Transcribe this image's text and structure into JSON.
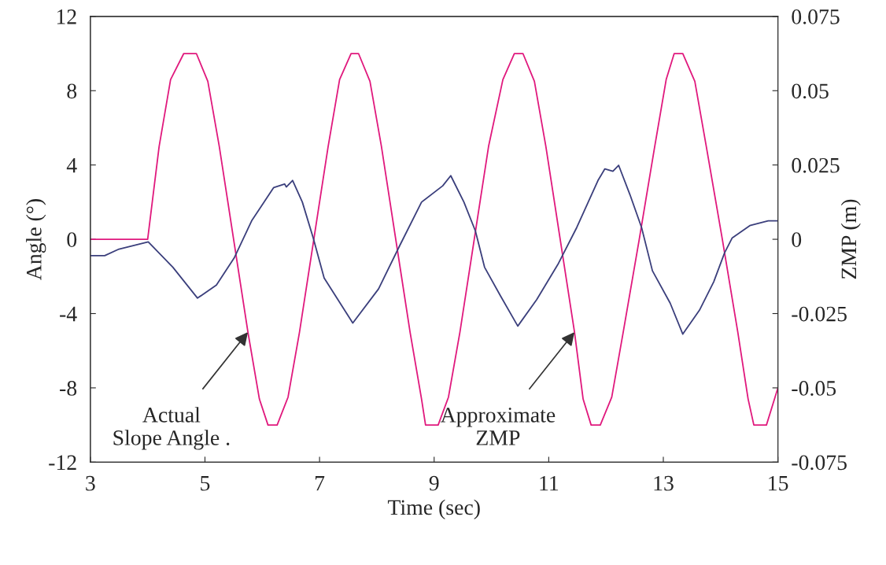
{
  "chart_data": {
    "type": "line",
    "xlabel": "Time (sec)",
    "ylabel": "Angle (°)",
    "y2label": "ZMP (m)",
    "xlim": [
      3,
      15
    ],
    "xticks": [
      3,
      5,
      7,
      9,
      11,
      13,
      15
    ],
    "ylim": [
      -12,
      12
    ],
    "yticks": [
      -12,
      -8,
      -4,
      0,
      4,
      8,
      12
    ],
    "y2lim": [
      -0.075,
      0.075
    ],
    "y2ticks": [
      -0.075,
      -0.05,
      -0.025,
      0,
      0.025,
      0.05,
      0.075
    ],
    "grid": false,
    "legend": false,
    "marker": "none",
    "line_style": "solid",
    "series": [
      {
        "color": "#e0197d",
        "x": [
          3,
          4.0,
          4.2,
          4.4,
          4.63,
          4.85,
          5.05,
          5.25,
          5.5,
          5.75,
          5.95,
          6.1,
          6.26,
          6.45,
          6.65,
          6.9,
          7.15,
          7.35,
          7.55,
          7.68,
          7.88,
          8.08,
          8.33,
          8.58,
          8.78,
          8.85,
          9.07,
          9.25,
          9.45,
          9.7,
          9.95,
          10.2,
          10.4,
          10.55,
          10.75,
          10.95,
          11.2,
          11.45,
          11.6,
          11.74,
          11.9,
          12.1,
          12.3,
          12.58,
          12.85,
          13.05,
          13.19,
          13.34,
          13.55,
          13.75,
          14.03,
          14.3,
          14.48,
          14.58,
          14.8,
          15
        ],
        "values": [
          0,
          0,
          5,
          8.6,
          10,
          10,
          8.5,
          5,
          0,
          -5,
          -8.6,
          -10,
          -10,
          -8.5,
          -5,
          0,
          5,
          8.6,
          10,
          10,
          8.5,
          5,
          0,
          -5,
          -8.6,
          -10,
          -10,
          -8.5,
          -5,
          0,
          5,
          8.6,
          10,
          10,
          8.5,
          5,
          0,
          -5,
          -8.6,
          -10,
          -10,
          -8.5,
          -5,
          0,
          5,
          8.6,
          10,
          10,
          8.5,
          5,
          0,
          -5,
          -8.6,
          -10,
          -10,
          -8
        ]
      },
      {
        "color": "#3b3f7c",
        "axis": "y2",
        "x": [
          3,
          3.25,
          3.5,
          4.01,
          4.44,
          4.87,
          5.2,
          5.51,
          5.82,
          6.2,
          6.39,
          6.42,
          6.53,
          6.7,
          6.89,
          7.08,
          7.58,
          8.03,
          8.4,
          8.78,
          9.15,
          9.29,
          9.52,
          9.72,
          9.88,
          10.16,
          10.46,
          10.79,
          11.17,
          11.49,
          11.86,
          11.98,
          12.12,
          12.22,
          12.42,
          12.62,
          12.81,
          13.12,
          13.34,
          13.63,
          13.88,
          14.07,
          14.2,
          14.51,
          14.83,
          15
        ],
        "values": [
          -0.0055,
          -0.0055,
          -0.0033,
          -0.0009,
          -0.0094,
          -0.0198,
          -0.0154,
          -0.0063,
          0.0064,
          0.0174,
          0.0186,
          0.0176,
          0.0198,
          0.0125,
          0.0004,
          -0.013,
          -0.0282,
          -0.0167,
          -0.0021,
          0.0125,
          0.018,
          0.0214,
          0.0125,
          0.0028,
          -0.0094,
          -0.0191,
          -0.0292,
          -0.0203,
          -0.0081,
          0.004,
          0.0198,
          0.0237,
          0.0229,
          0.0249,
          0.0149,
          0.004,
          -0.0106,
          -0.0215,
          -0.0319,
          -0.0239,
          -0.0143,
          -0.0045,
          0.0004,
          0.0046,
          0.0062,
          0.0062
        ]
      }
    ],
    "annotations": [
      {
        "text": "Actual\nSlope Angle .",
        "x": 5.75,
        "y": -5
      },
      {
        "text": "Approximate\nZMP",
        "x": 11.45,
        "y": -5
      }
    ]
  }
}
